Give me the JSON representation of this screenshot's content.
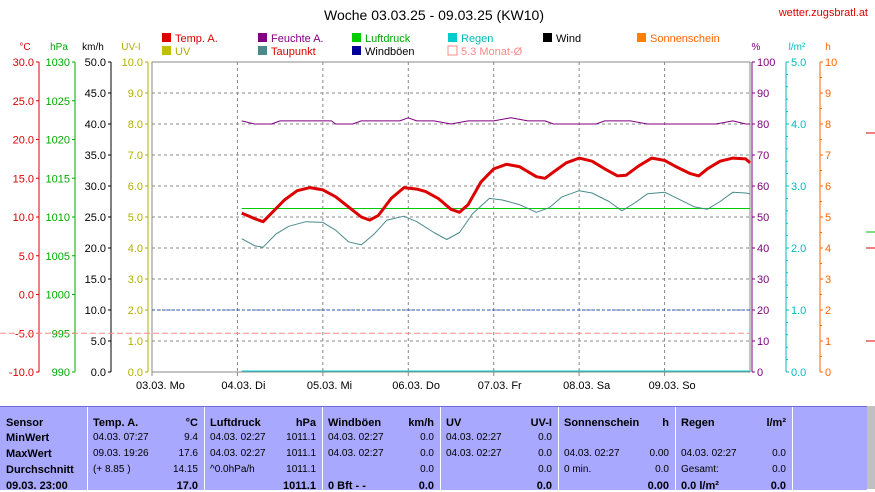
{
  "title": "Woche 03.03.25 - 09.03.25 (KW10)",
  "site": "wetter.zugsbratl.at",
  "colors": {
    "temp": "#dd0000",
    "humidity": "#800080",
    "pressure": "#00cc00",
    "rain": "#00cccc",
    "wind": "#000000",
    "sunshine": "#ff8000",
    "uv": "#c0c000",
    "dewpoint": "#4a8a8a",
    "gust": "#000099",
    "monthavg": "#ff8888",
    "panel": "#a8a8ff"
  },
  "axis_units": {
    "celsius": "°C",
    "hpa": "hPa",
    "kmh": "km/h",
    "uv": "UV-I",
    "percent": "%",
    "rain": "l/m²",
    "hours": "h"
  },
  "legend": [
    {
      "label": "Temp. A.",
      "color_key": "temp",
      "text_color": "#dd0000"
    },
    {
      "label": "Feuchte A.",
      "color_key": "humidity",
      "text_color": "#800080"
    },
    {
      "label": "Luftdruck",
      "color_key": "pressure",
      "text_color": "#00aa00"
    },
    {
      "label": "Regen",
      "color_key": "rain",
      "text_color": "#00bbbb"
    },
    {
      "label": "Wind",
      "color_key": "wind",
      "text_color": "#000000"
    },
    {
      "label": "Sonnenschein",
      "color_key": "sunshine",
      "text_color": "#ff6600"
    },
    {
      "label": "UV",
      "color_key": "uv",
      "text_color": "#b0b000"
    },
    {
      "label": "Taupunkt",
      "color_key": "dewpoint",
      "text_color": "#dd0000"
    },
    {
      "label": "Windböen",
      "color_key": "gust",
      "text_color": "#000000"
    },
    {
      "label": "5.3 Monat-Ø",
      "color_key": "monthavg",
      "text_color": "#ff8888"
    }
  ],
  "chart_data": {
    "type": "line",
    "days": [
      "03.03. Mo",
      "04.03. Di",
      "05.03. Mi",
      "06.03. Do",
      "07.03. Fr",
      "08.03. Sa",
      "09.03. So"
    ],
    "axes": {
      "celsius": {
        "ticks": [
          "30.0",
          "25.0",
          "20.0",
          "15.0",
          "10.0",
          "5.0",
          "0.0",
          "-5.0",
          "-10.0"
        ],
        "range": [
          -10,
          30
        ]
      },
      "hpa": {
        "ticks": [
          "1030",
          "1025",
          "1020",
          "1015",
          "1010",
          "1005",
          "1000",
          "995",
          "990"
        ],
        "range": [
          990,
          1030
        ]
      },
      "kmh": {
        "ticks": [
          "50.0",
          "45.0",
          "40.0",
          "35.0",
          "30.0",
          "25.0",
          "20.0",
          "15.0",
          "10.0",
          "5.0",
          "0.0"
        ],
        "range": [
          0,
          50
        ]
      },
      "uv": {
        "ticks": [
          "10.0",
          "9.0",
          "8.0",
          "7.0",
          "6.0",
          "5.0",
          "4.0",
          "3.0",
          "2.0",
          "1.0",
          "0.0"
        ],
        "range": [
          0,
          10
        ]
      },
      "percent": {
        "ticks": [
          "100",
          "90",
          "80",
          "70",
          "60",
          "50",
          "40",
          "30",
          "20",
          "10",
          "0"
        ],
        "range": [
          0,
          100
        ]
      },
      "rain": {
        "ticks": [
          "5.0",
          "4.0",
          "3.0",
          "2.0",
          "1.0",
          "0.0"
        ],
        "range": [
          0,
          5
        ]
      },
      "hours": {
        "ticks": [
          "10",
          "9",
          "8",
          "7",
          "6",
          "5",
          "4",
          "3",
          "2",
          "1",
          "0"
        ],
        "range": [
          0,
          10
        ]
      }
    },
    "x_range_days": [
      0,
      7
    ],
    "series": [
      {
        "name": "Temp. A.",
        "color_key": "temp",
        "width": 3,
        "points": [
          [
            1.05,
            10.5
          ],
          [
            1.2,
            9.8
          ],
          [
            1.3,
            9.4
          ],
          [
            1.4,
            10.5
          ],
          [
            1.55,
            12.2
          ],
          [
            1.7,
            13.4
          ],
          [
            1.85,
            13.8
          ],
          [
            2.0,
            13.5
          ],
          [
            2.15,
            12.6
          ],
          [
            2.3,
            11.3
          ],
          [
            2.45,
            10.0
          ],
          [
            2.55,
            9.6
          ],
          [
            2.65,
            10.2
          ],
          [
            2.8,
            12.4
          ],
          [
            2.95,
            13.8
          ],
          [
            3.1,
            13.6
          ],
          [
            3.2,
            13.3
          ],
          [
            3.35,
            12.4
          ],
          [
            3.5,
            11.0
          ],
          [
            3.6,
            10.6
          ],
          [
            3.7,
            11.6
          ],
          [
            3.85,
            14.5
          ],
          [
            4.0,
            16.2
          ],
          [
            4.15,
            16.8
          ],
          [
            4.3,
            16.5
          ],
          [
            4.5,
            15.2
          ],
          [
            4.6,
            15.0
          ],
          [
            4.7,
            15.8
          ],
          [
            4.85,
            17.0
          ],
          [
            5.0,
            17.6
          ],
          [
            5.15,
            17.2
          ],
          [
            5.3,
            16.2
          ],
          [
            5.45,
            15.3
          ],
          [
            5.55,
            15.4
          ],
          [
            5.7,
            16.6
          ],
          [
            5.85,
            17.6
          ],
          [
            6.0,
            17.3
          ],
          [
            6.15,
            16.4
          ],
          [
            6.3,
            15.6
          ],
          [
            6.4,
            15.3
          ],
          [
            6.5,
            16.2
          ],
          [
            6.65,
            17.2
          ],
          [
            6.8,
            17.6
          ],
          [
            6.95,
            17.5
          ],
          [
            7.0,
            17.0
          ]
        ]
      },
      {
        "name": "Taupunkt",
        "color_key": "dewpoint",
        "width": 1,
        "points": [
          [
            1.05,
            7.2
          ],
          [
            1.2,
            6.3
          ],
          [
            1.3,
            6.1
          ],
          [
            1.45,
            7.8
          ],
          [
            1.6,
            8.8
          ],
          [
            1.8,
            9.4
          ],
          [
            2.0,
            9.3
          ],
          [
            2.15,
            8.3
          ],
          [
            2.3,
            6.8
          ],
          [
            2.45,
            6.4
          ],
          [
            2.6,
            7.8
          ],
          [
            2.75,
            9.6
          ],
          [
            2.95,
            10.1
          ],
          [
            3.1,
            9.4
          ],
          [
            3.3,
            8.0
          ],
          [
            3.45,
            7.1
          ],
          [
            3.6,
            8.0
          ],
          [
            3.75,
            10.4
          ],
          [
            3.95,
            12.4
          ],
          [
            4.1,
            12.2
          ],
          [
            4.3,
            11.6
          ],
          [
            4.5,
            10.6
          ],
          [
            4.65,
            11.2
          ],
          [
            4.8,
            12.6
          ],
          [
            5.0,
            13.4
          ],
          [
            5.15,
            13.1
          ],
          [
            5.35,
            12.0
          ],
          [
            5.5,
            10.8
          ],
          [
            5.65,
            11.8
          ],
          [
            5.8,
            13.0
          ],
          [
            6.0,
            13.2
          ],
          [
            6.15,
            12.4
          ],
          [
            6.35,
            11.3
          ],
          [
            6.5,
            11.0
          ],
          [
            6.65,
            12.0
          ],
          [
            6.8,
            13.2
          ],
          [
            6.95,
            13.1
          ],
          [
            7.0,
            13.0
          ]
        ]
      },
      {
        "name": "Feuchte A.",
        "color_key": "humidity",
        "width": 1,
        "unit": "percent",
        "points": [
          [
            1.05,
            81
          ],
          [
            1.2,
            80
          ],
          [
            1.4,
            80
          ],
          [
            1.5,
            81
          ],
          [
            1.7,
            81
          ],
          [
            1.9,
            81
          ],
          [
            2.0,
            81
          ],
          [
            2.1,
            81
          ],
          [
            2.15,
            80
          ],
          [
            2.25,
            80
          ],
          [
            2.35,
            80
          ],
          [
            2.45,
            81
          ],
          [
            2.7,
            81
          ],
          [
            2.9,
            81
          ],
          [
            3.0,
            82
          ],
          [
            3.1,
            81
          ],
          [
            3.3,
            81
          ],
          [
            3.5,
            80
          ],
          [
            3.7,
            81
          ],
          [
            3.9,
            81
          ],
          [
            4.0,
            81
          ],
          [
            4.2,
            82
          ],
          [
            4.4,
            81
          ],
          [
            4.6,
            81
          ],
          [
            4.7,
            80
          ],
          [
            5.0,
            80
          ],
          [
            5.2,
            80
          ],
          [
            5.3,
            81
          ],
          [
            5.5,
            81
          ],
          [
            5.6,
            81
          ],
          [
            5.8,
            80
          ],
          [
            6.0,
            80
          ],
          [
            6.2,
            80
          ],
          [
            6.4,
            80
          ],
          [
            6.6,
            80
          ],
          [
            6.8,
            81
          ],
          [
            6.95,
            80
          ],
          [
            7.0,
            80
          ]
        ]
      }
    ],
    "pressure_line_hpa": 1011.1,
    "monthavg_line_celsius": -5.0,
    "dashed_blue_kmh": 10.0
  },
  "stats": {
    "sensor": {
      "header": "Sensor",
      "rows": [
        "MinWert",
        "MaxWert",
        "Durchschnitt",
        "09.03. 23:00"
      ]
    },
    "temp": {
      "header": "Temp. A.",
      "unit": "°C",
      "rows": [
        [
          "04.03.  07:27",
          "9.4"
        ],
        [
          "09.03.  19:26",
          "17.6"
        ],
        [
          "(+ 8.85 )",
          "14.15"
        ],
        [
          "",
          "17.0"
        ]
      ]
    },
    "pressure": {
      "header": "Luftdruck",
      "unit": "hPa",
      "rows": [
        [
          "04.03.  02:27",
          "1011.1"
        ],
        [
          "04.03.  02:27",
          "1011.1"
        ],
        [
          "^0.0hPa/h",
          "1011.1"
        ],
        [
          "",
          "1011.1"
        ]
      ]
    },
    "gust": {
      "header": "Windböen",
      "unit": "km/h",
      "rows": [
        [
          "04.03.  02:27",
          "0.0"
        ],
        [
          "04.03.  02:27",
          "0.0"
        ],
        [
          "",
          "0.0"
        ],
        [
          "0 Bft - -",
          "0.0"
        ]
      ]
    },
    "uv": {
      "header": "UV",
      "unit": "UV-I",
      "rows": [
        [
          "04.03.  02:27",
          "0.0"
        ],
        [
          "04.03.  02:27",
          "0.0"
        ],
        [
          "",
          "0.0"
        ],
        [
          "",
          "0.0"
        ]
      ]
    },
    "sun": {
      "header": "Sonnenschein",
      "unit": "h",
      "rows": [
        [
          "",
          ""
        ],
        [
          "04.03.  02:27",
          "0.00"
        ],
        [
          "0 min.",
          "0.0"
        ],
        [
          "",
          "0.00"
        ]
      ]
    },
    "rain": {
      "header": "Regen",
      "unit": "l/m²",
      "rows": [
        [
          "",
          ""
        ],
        [
          "04.03.  02:27",
          "0.0"
        ],
        [
          "Gesamt:",
          "0.0"
        ],
        [
          "0.0 l/m²",
          "0.0"
        ]
      ]
    }
  }
}
